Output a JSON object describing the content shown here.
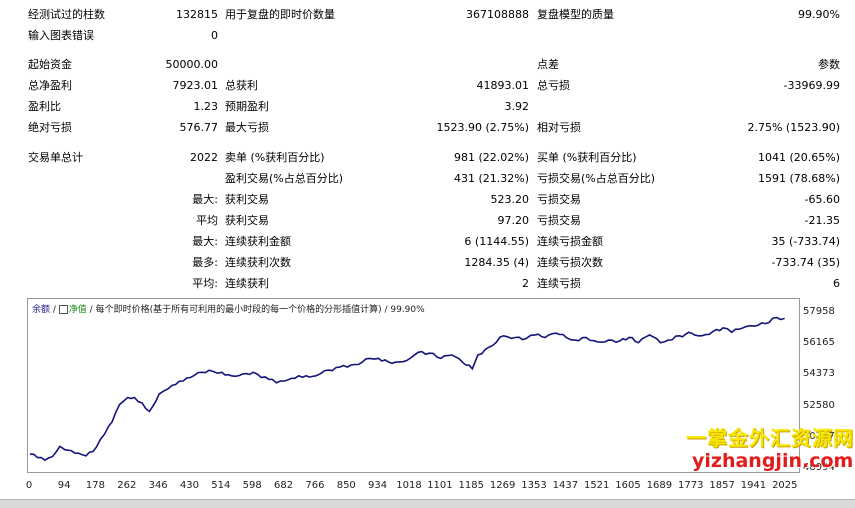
{
  "stats": {
    "row1": {
      "label_a": "经测试过的柱数",
      "value_a": "132815",
      "label_b": "用于复盘的即时价数量",
      "value_b": "367108888",
      "label_c": "复盘模型的质量",
      "value_c": "99.90%"
    },
    "row2": {
      "label_a": "输入图表错误",
      "value_a": "0"
    },
    "row3": {
      "label_a": "起始资金",
      "value_a": "50000.00",
      "label_c": "点差",
      "value_c": "参数"
    },
    "row4": {
      "label_a": "总净盈利",
      "value_a": "7923.01",
      "label_b": "总获利",
      "value_b": "41893.01",
      "label_c": "总亏损",
      "value_c": "-33969.99"
    },
    "row5": {
      "label_a": "盈利比",
      "value_a": "1.23",
      "label_b": "预期盈利",
      "value_b": "3.92"
    },
    "row6": {
      "label_a": "绝对亏损",
      "value_a": "576.77",
      "label_b": "最大亏损",
      "value_b": "1523.90 (2.75%)",
      "label_c": "相对亏损",
      "value_c": "2.75% (1523.90)"
    },
    "row7": {
      "label_a": "交易单总计",
      "value_a": "2022",
      "label_b": "卖单 (%获利百分比)",
      "value_b": "981 (22.02%)",
      "label_c": "买单 (%获利百分比)",
      "value_c": "1041 (20.65%)"
    },
    "row8": {
      "label_b": "盈利交易(%占总百分比)",
      "value_b": "431 (21.32%)",
      "label_c": "亏损交易(%占总百分比)",
      "value_c": "1591 (78.68%)"
    },
    "row9": {
      "label_a": "最大:",
      "label_b": "获利交易",
      "value_b": "523.20",
      "label_c": "亏损交易",
      "value_c": "-65.60"
    },
    "row10": {
      "label_a": "平均",
      "label_b": "获利交易",
      "value_b": "97.20",
      "label_c": "亏损交易",
      "value_c": "-21.35"
    },
    "row11": {
      "label_a": "最大:",
      "label_b": "连续获利金额",
      "value_b": "6 (1144.55)",
      "label_c": "连续亏损金额",
      "value_c": "35 (-733.74)"
    },
    "row12": {
      "label_a": "最多:",
      "label_b": "连续获利次数",
      "value_b": "1284.35 (4)",
      "label_c": "连续亏损次数",
      "value_c": "-733.74 (35)"
    },
    "row13": {
      "label_a": "平均:",
      "label_b": "连续获利",
      "value_b": "2",
      "label_c": "连续亏损",
      "value_c": "6"
    }
  },
  "chart_legend": {
    "balance": "余额",
    "sep1": " / ",
    "equity": "净值",
    "sep2": " / ",
    "text": "每个即时价格(基于所有可利用的最小时段的每一个价格的分形插值计算)",
    "sep3": " / ",
    "quality": "99.90%"
  },
  "watermark": {
    "line1": "一掌金外汇资源网",
    "line2": "yizhangjin.com"
  },
  "chart_data": {
    "type": "line",
    "series": [
      {
        "x": [
          0,
          20,
          40,
          60,
          80,
          94,
          110,
          130,
          150,
          178,
          200,
          220,
          240,
          262,
          280,
          300,
          320,
          346,
          370,
          390,
          410,
          430,
          460,
          490,
          514,
          540,
          570,
          598,
          620,
          640,
          660,
          682,
          700,
          720,
          740,
          766,
          790,
          810,
          830,
          850,
          880,
          910,
          934,
          960,
          990,
          1018,
          1040,
          1070,
          1101,
          1130,
          1160,
          1185,
          1200,
          1230,
          1269,
          1300,
          1330,
          1353,
          1380,
          1410,
          1437,
          1460,
          1490,
          1521,
          1550,
          1580,
          1605,
          1630,
          1660,
          1689,
          1710,
          1740,
          1773,
          1800,
          1830,
          1857,
          1880,
          1910,
          1941,
          1970,
          2000,
          2022
        ],
        "y": [
          49850,
          49650,
          49500,
          49700,
          50300,
          50100,
          50050,
          49900,
          49750,
          50250,
          51000,
          51700,
          52700,
          53100,
          53100,
          52800,
          52300,
          53300,
          53600,
          53850,
          54050,
          54250,
          54550,
          54600,
          54550,
          54350,
          54450,
          54550,
          54250,
          54150,
          53950,
          54050,
          54200,
          54350,
          54350,
          54350,
          54650,
          54650,
          54850,
          54850,
          55000,
          55350,
          55350,
          55150,
          55150,
          55350,
          55700,
          55650,
          55350,
          55550,
          55100,
          54750,
          55550,
          56000,
          56650,
          56550,
          56500,
          56700,
          56550,
          56800,
          56550,
          56400,
          56550,
          56300,
          56400,
          56350,
          56550,
          56250,
          56700,
          56250,
          56400,
          56650,
          56800,
          56650,
          56900,
          57100,
          56850,
          57100,
          57200,
          57350,
          57700,
          57650
        ]
      }
    ],
    "x_ticks": [
      "0",
      "94",
      "178",
      "262",
      "346",
      "430",
      "514",
      "598",
      "682",
      "766",
      "850",
      "934",
      "1018",
      "1101",
      "1185",
      "1269",
      "1353",
      "1437",
      "1521",
      "1605",
      "1689",
      "1773",
      "1857",
      "1941",
      "2025"
    ],
    "y_ticks": [
      "57958",
      "56165",
      "54373",
      "52580",
      "50787",
      "48994"
    ],
    "ylim": [
      48994,
      57958
    ],
    "xlim": [
      0,
      2055
    ],
    "colors": {
      "line": "#14147a"
    }
  }
}
